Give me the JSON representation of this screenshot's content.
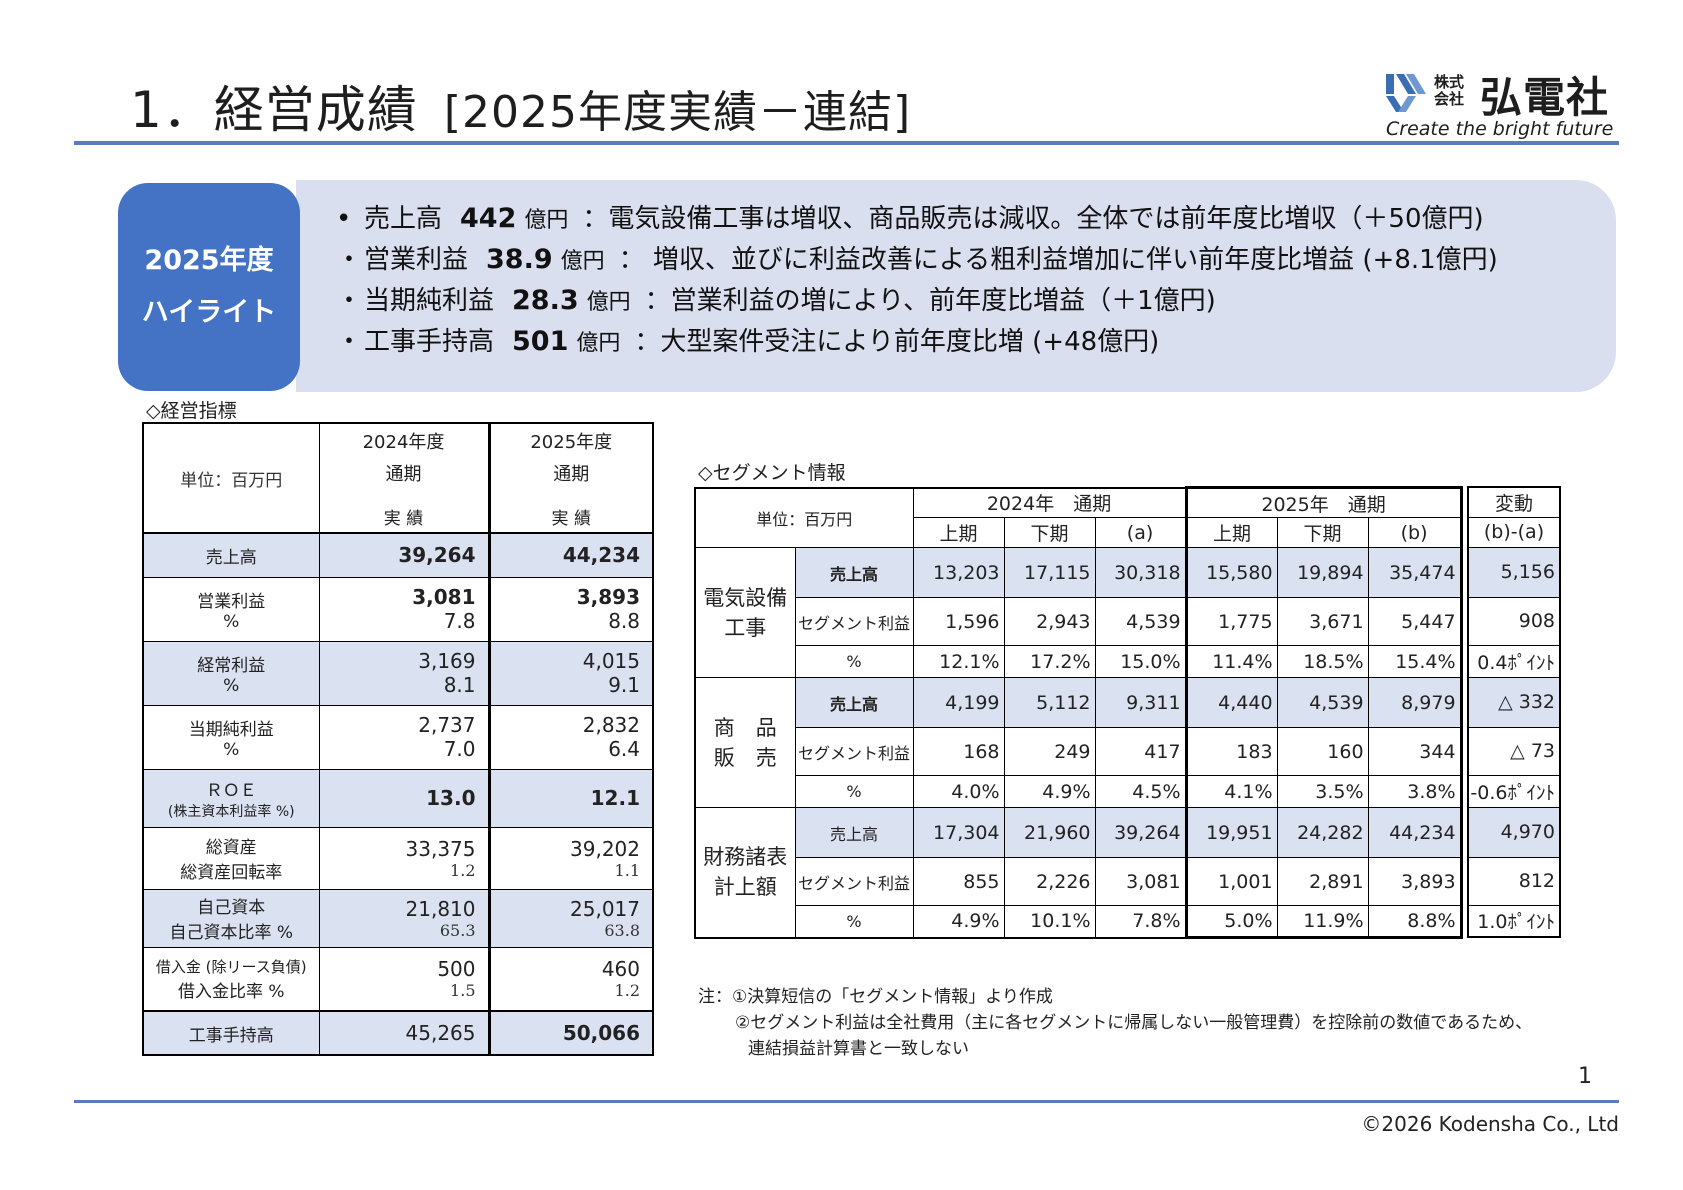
{
  "header": {
    "title": "1．経営成績",
    "subtitle": "[2025年度実績－連結]"
  },
  "logo": {
    "kk_line1": "株式",
    "kk_line2": "会社",
    "name": "弘電社",
    "tagline": "Create the bright future"
  },
  "highlight": {
    "label_line1": "2025年度",
    "label_line2": "ハイライト",
    "items": [
      {
        "bullet": "•",
        "metric": "売上高",
        "value": "442",
        "unit": "億円",
        "desc": "：電気設備工事は増収、商品販売は減収。全体では前年度比増収（＋50億円)"
      },
      {
        "bullet": "・",
        "metric": "営業利益",
        "value": "38.9",
        "unit": "億円",
        "desc": "： 増収、並びに利益改善による粗利益増加に伴い前年度比増益 (+8.1億円)"
      },
      {
        "bullet": "・",
        "metric": "当期純利益",
        "value": "28.3",
        "unit": "億円",
        "desc": "：営業利益の増により、前年度比増益（＋1億円)"
      },
      {
        "bullet": "・",
        "metric": "工事手持高",
        "value": "501",
        "unit": "億円",
        "desc": "：大型案件受注により前年度比増 (+48億円)"
      }
    ]
  },
  "kpi": {
    "section_title": "◇経営指標",
    "unit": "単位：百万円",
    "col1": {
      "year": "2024年度",
      "period": "通期",
      "kind": "実 績"
    },
    "col2": {
      "year": "2025年度",
      "period": "通期",
      "kind": "実 績"
    },
    "rows": {
      "sales": {
        "label": "売上高",
        "v1": "39,264",
        "v2": "44,234"
      },
      "op": {
        "label": "営業利益",
        "v1": "3,081",
        "v2": "3,893",
        "sub_label": "%",
        "s1": "7.8",
        "s2": "8.8"
      },
      "ord": {
        "label": "経常利益",
        "v1": "3,169",
        "v2": "4,015",
        "sub_label": "%",
        "s1": "8.1",
        "s2": "9.1"
      },
      "net": {
        "label": "当期純利益",
        "v1": "2,737",
        "v2": "2,832",
        "sub_label": "%",
        "s1": "7.0",
        "s2": "6.4"
      },
      "roe": {
        "label": "ＲＯＥ",
        "sub_label": "(株主資本利益率 %)",
        "v1": "13.0",
        "v2": "12.1"
      },
      "assets": {
        "label": "総資産",
        "v1": "33,375",
        "v2": "39,202",
        "sub_label": "総資産回転率",
        "s1": "1.2",
        "s2": "1.1"
      },
      "equity": {
        "label": "自己資本",
        "v1": "21,810",
        "v2": "25,017",
        "sub_label": "自己資本比率 %",
        "s1": "65.3",
        "s2": "63.8"
      },
      "debt": {
        "label": "借入金 (除リース負債)",
        "v1": "500",
        "v2": "460",
        "sub_label": "借入金比率 %",
        "s1": "1.5",
        "s2": "1.2"
      },
      "backlog": {
        "label": "工事手持高",
        "v1": "45,265",
        "v2": "50,066"
      }
    }
  },
  "segment": {
    "section_title": "◇セグメント情報",
    "unit": "単位：百万円",
    "y2024": "2024年　通期",
    "y2025": "2025年　通期",
    "change": "変動",
    "h_first": "上期",
    "h_second": "下期",
    "col_a": "(a)",
    "col_b": "(b)",
    "col_ba": "(b)-(a)",
    "groups": [
      {
        "name_line1": "電気設備",
        "name_line2": "工事",
        "rows": [
          {
            "label": "売上高",
            "vals": [
              "13,203",
              "17,115",
              "30,318",
              "15,580",
              "19,894",
              "35,474"
            ],
            "chg": "5,156"
          },
          {
            "label": "セグメント利益",
            "vals": [
              "1,596",
              "2,943",
              "4,539",
              "1,775",
              "3,671",
              "5,447"
            ],
            "chg": "908"
          },
          {
            "label": "%",
            "vals": [
              "12.1%",
              "17.2%",
              "15.0%",
              "11.4%",
              "18.5%",
              "15.4%"
            ],
            "chg": "0.4ﾎﾟｲﾝﾄ"
          }
        ]
      },
      {
        "name_line1": "商　品",
        "name_line2": "販　売",
        "rows": [
          {
            "label": "売上高",
            "vals": [
              "4,199",
              "5,112",
              "9,311",
              "4,440",
              "4,539",
              "8,979"
            ],
            "chg": "△ 332"
          },
          {
            "label": "セグメント利益",
            "vals": [
              "168",
              "249",
              "417",
              "183",
              "160",
              "344"
            ],
            "chg": "△ 73"
          },
          {
            "label": "%",
            "vals": [
              "4.0%",
              "4.9%",
              "4.5%",
              "4.1%",
              "3.5%",
              "3.8%"
            ],
            "chg": "-0.6ﾎﾟｲﾝﾄ"
          }
        ]
      },
      {
        "name_line1": "財務諸表",
        "name_line2": "計上額",
        "rows": [
          {
            "label": "売上高",
            "vals": [
              "17,304",
              "21,960",
              "39,264",
              "19,951",
              "24,282",
              "44,234"
            ],
            "chg": "4,970"
          },
          {
            "label": "セグメント利益",
            "vals": [
              "855",
              "2,226",
              "3,081",
              "1,001",
              "2,891",
              "3,893"
            ],
            "chg": "812"
          },
          {
            "label": "%",
            "vals": [
              "4.9%",
              "10.1%",
              "7.8%",
              "5.0%",
              "11.9%",
              "8.8%"
            ],
            "chg": "1.0ﾎﾟｲﾝﾄ"
          }
        ]
      }
    ],
    "notes": [
      "注：①決算短信の「セグメント情報」より作成",
      "②セグメント利益は全社費用（主に各セグメントに帰属しない一般管理費）を控除前の数値であるため、",
      "連結損益計算書と一致しない"
    ]
  },
  "footer": {
    "page_number": "1",
    "copyright": "©2026  Kodensha Co., Ltd"
  },
  "colors": {
    "accent": "#4472c4",
    "highlight_bg": "#d9dfee",
    "table_shade": "#dae1f1",
    "rule": "#5b7bc0"
  }
}
